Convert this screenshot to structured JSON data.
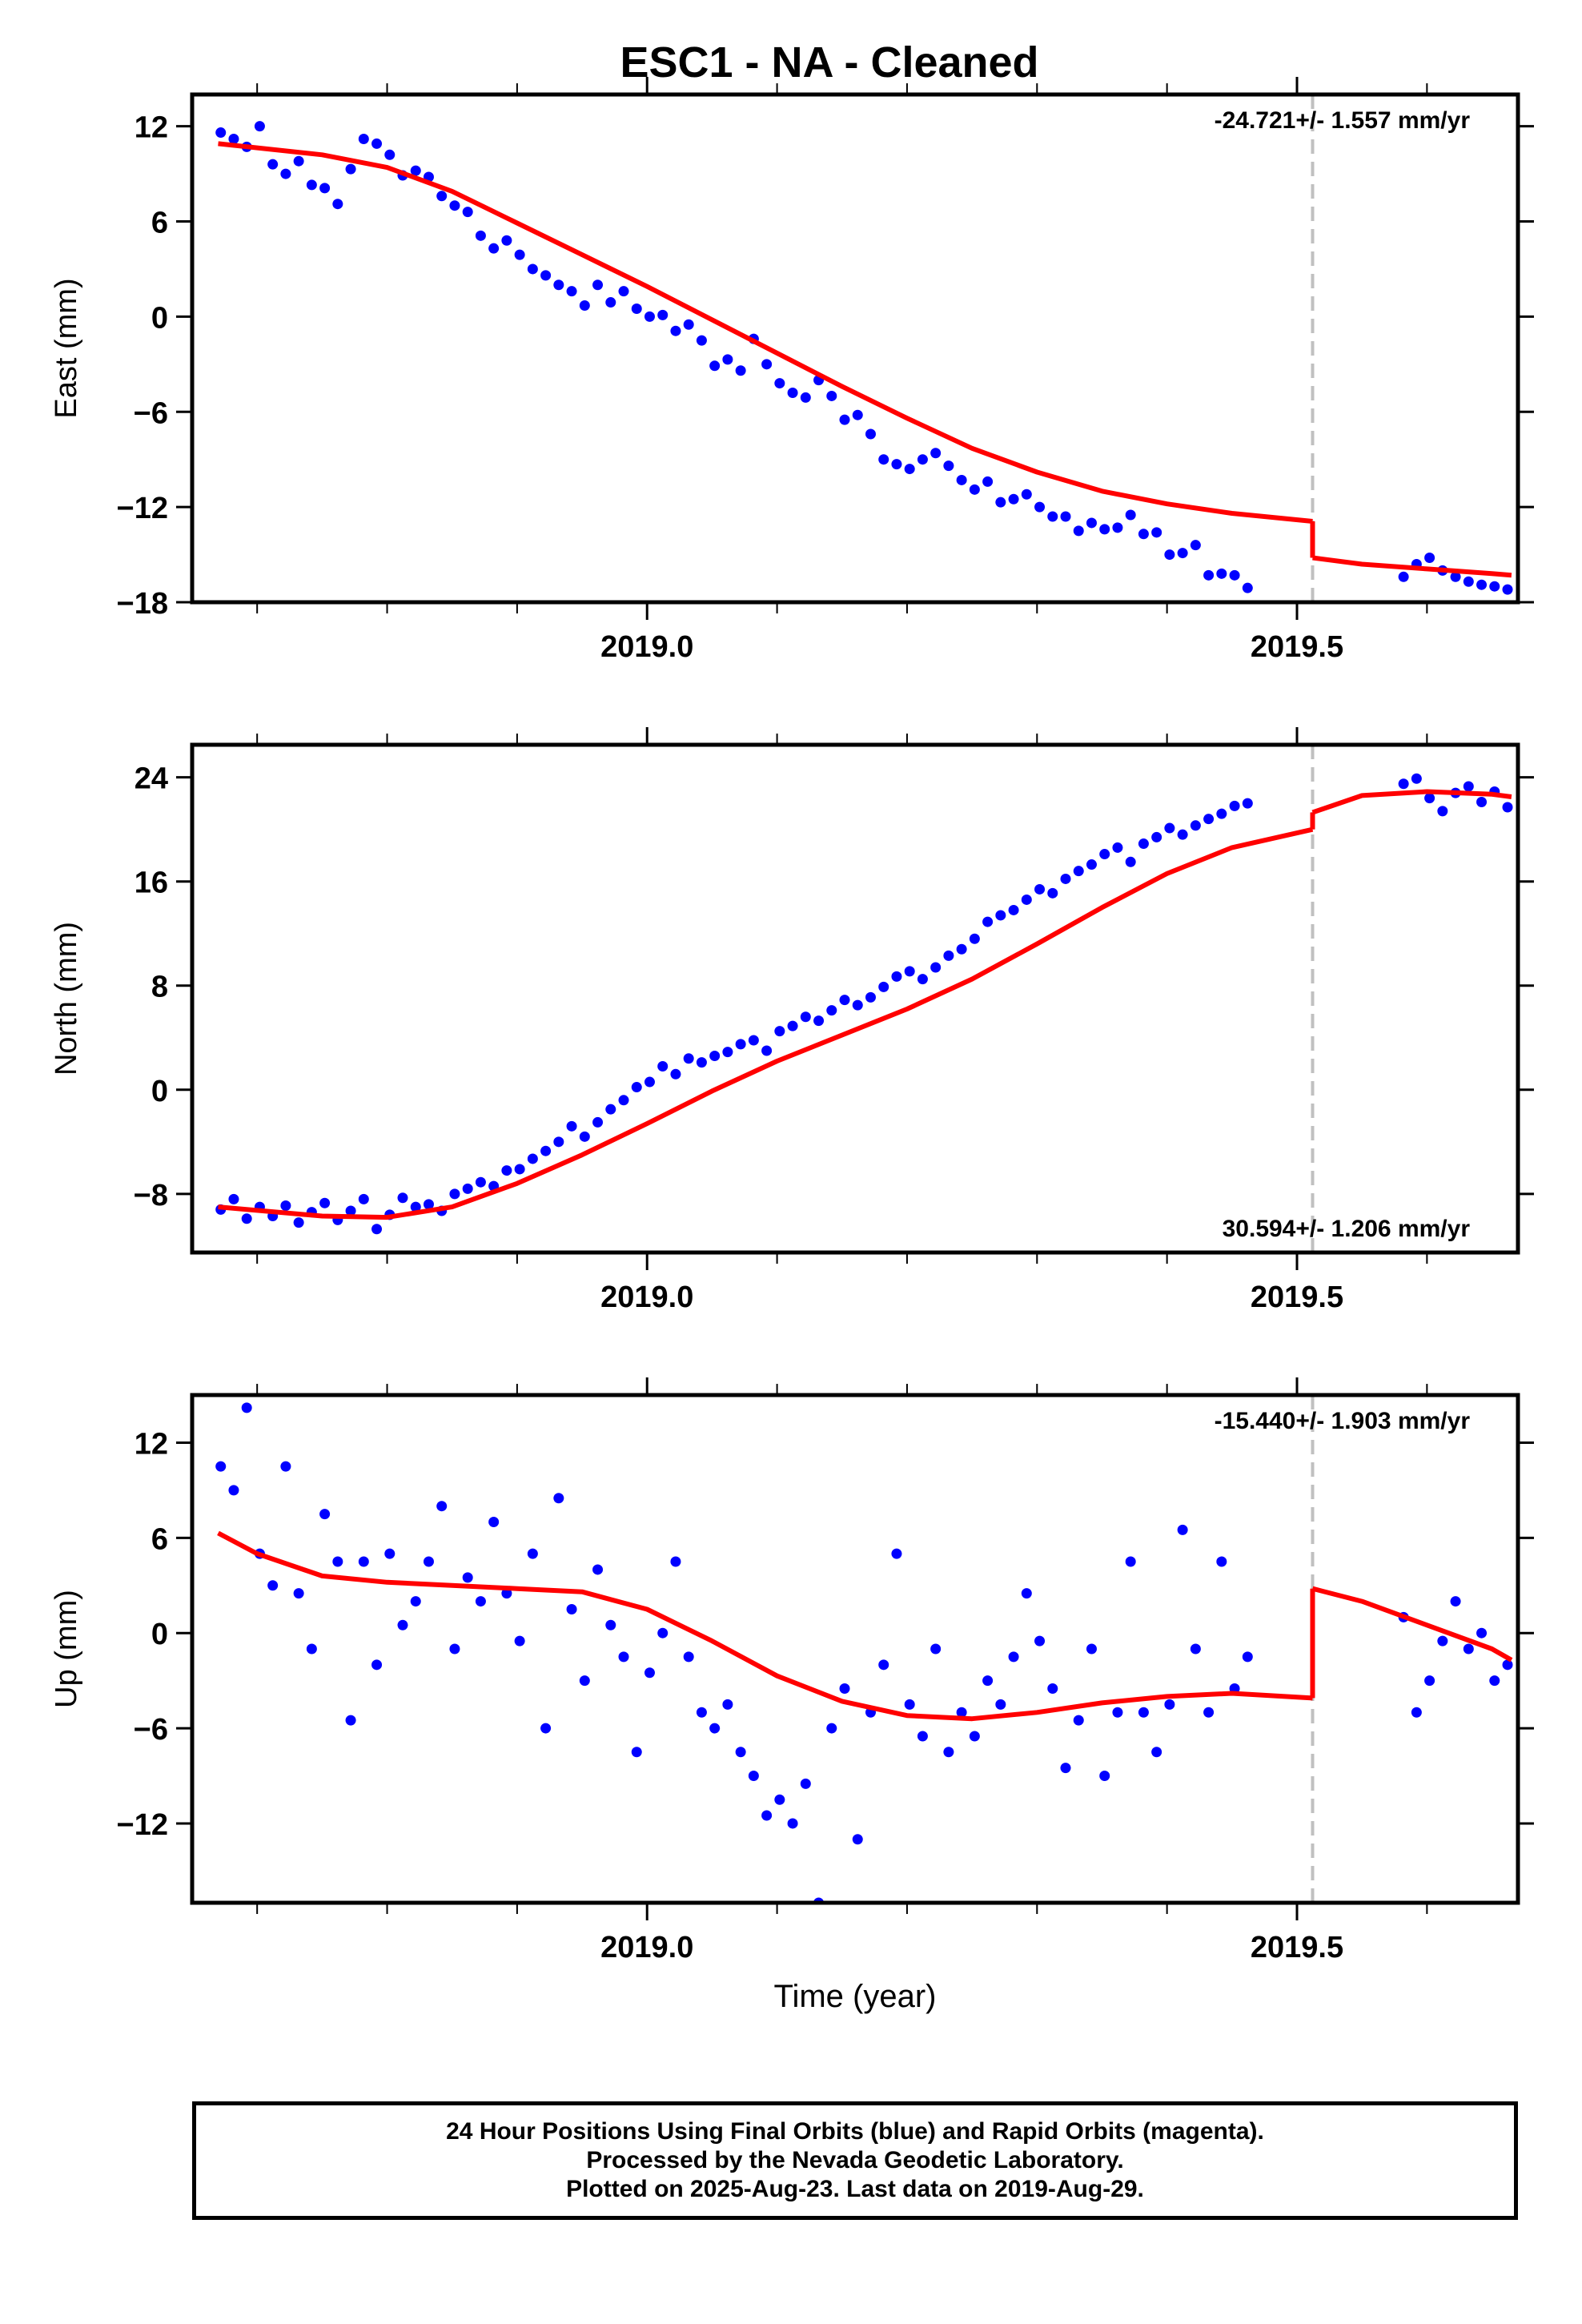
{
  "page": {
    "title": "ESC1  - NA - Cleaned"
  },
  "colors": {
    "final_orbits": "#0000ff",
    "model_line": "#ff0000",
    "break_line": "#c0c0c0",
    "frame": "#000000"
  },
  "chart_data": [
    {
      "type": "scatter",
      "ylabel": "East (mm)",
      "xlabel": "",
      "xlim": [
        2018.65,
        2019.67
      ],
      "ylim": [
        -18,
        14
      ],
      "yticks": [
        12,
        6,
        0,
        -6,
        -12,
        -18
      ],
      "ytick_labels": [
        "12",
        "6",
        "0",
        "−6",
        "−12",
        "−18"
      ],
      "xticks": [
        2019.0,
        2019.5
      ],
      "xtick_labels": [
        "2019.0",
        "2019.5"
      ],
      "break_epoch": 2019.512,
      "rate_label": "-24.721+/- 1.557 mm/yr",
      "rate_position": "top-right",
      "series": [
        {
          "kind": "points",
          "x": [
            2018.672,
            2018.682,
            2018.692,
            2018.702,
            2018.712,
            2018.722,
            2018.732,
            2018.742,
            2018.752,
            2018.762,
            2018.772,
            2018.782,
            2018.792,
            2018.802,
            2018.812,
            2018.822,
            2018.832,
            2018.842,
            2018.852,
            2018.862,
            2018.872,
            2018.882,
            2018.892,
            2018.902,
            2018.912,
            2018.922,
            2018.932,
            2018.942,
            2018.952,
            2018.962,
            2018.972,
            2018.982,
            2018.992,
            2019.002,
            2019.012,
            2019.022,
            2019.032,
            2019.042,
            2019.052,
            2019.062,
            2019.072,
            2019.082,
            2019.092,
            2019.102,
            2019.112,
            2019.122,
            2019.132,
            2019.142,
            2019.152,
            2019.162,
            2019.172,
            2019.182,
            2019.192,
            2019.202,
            2019.212,
            2019.222,
            2019.232,
            2019.242,
            2019.252,
            2019.262,
            2019.272,
            2019.282,
            2019.292,
            2019.302,
            2019.312,
            2019.322,
            2019.332,
            2019.342,
            2019.352,
            2019.362,
            2019.372,
            2019.382,
            2019.392,
            2019.402,
            2019.412,
            2019.422,
            2019.432,
            2019.442,
            2019.452,
            2019.462,
            2019.582,
            2019.592,
            2019.602,
            2019.612,
            2019.622,
            2019.632,
            2019.642,
            2019.652,
            2019.662
          ],
          "y": [
            11.6,
            11.2,
            10.7,
            12.0,
            9.6,
            9.0,
            9.8,
            8.3,
            8.1,
            7.1,
            9.3,
            11.2,
            10.9,
            10.2,
            8.9,
            9.2,
            8.8,
            7.6,
            7.0,
            6.6,
            5.1,
            4.3,
            4.8,
            3.9,
            3.0,
            2.6,
            2.0,
            1.6,
            0.7,
            2.0,
            0.9,
            1.6,
            0.5,
            0.0,
            0.1,
            -0.9,
            -0.5,
            -1.5,
            -3.1,
            -2.7,
            -3.4,
            -1.4,
            -3.0,
            -4.2,
            -4.8,
            -5.1,
            -4.0,
            -5.0,
            -6.5,
            -6.2,
            -7.4,
            -9.0,
            -9.3,
            -9.6,
            -9.0,
            -8.6,
            -9.4,
            -10.3,
            -10.9,
            -10.4,
            -11.7,
            -11.5,
            -11.2,
            -12.0,
            -12.6,
            -12.6,
            -13.5,
            -13.0,
            -13.4,
            -13.3,
            -12.5,
            -13.7,
            -13.6,
            -15.0,
            -14.9,
            -14.4,
            -16.3,
            -16.2,
            -16.3,
            -17.1,
            -16.4,
            -15.6,
            -15.2,
            -16.0,
            -16.4,
            -16.7,
            -16.9,
            -17.0,
            -17.2
          ]
        },
        {
          "kind": "model_pre",
          "x": [
            2018.67,
            2018.75,
            2018.8,
            2018.85,
            2018.9,
            2018.95,
            2019.0,
            2019.05,
            2019.1,
            2019.15,
            2019.2,
            2019.25,
            2019.3,
            2019.35,
            2019.4,
            2019.45,
            2019.512
          ],
          "y": [
            10.9,
            10.2,
            9.4,
            7.9,
            5.9,
            3.9,
            1.9,
            -0.2,
            -2.3,
            -4.4,
            -6.4,
            -8.3,
            -9.8,
            -11.0,
            -11.8,
            -12.4,
            -12.9
          ]
        },
        {
          "kind": "model_post",
          "x": [
            2019.512,
            2019.55,
            2019.6,
            2019.65,
            2019.665
          ],
          "y": [
            -15.2,
            -15.6,
            -15.9,
            -16.2,
            -16.3
          ]
        }
      ]
    },
    {
      "type": "scatter",
      "ylabel": "North (mm)",
      "xlabel": "",
      "xlim": [
        2018.65,
        2019.67
      ],
      "ylim": [
        -12.5,
        26.5
      ],
      "yticks": [
        24,
        16,
        8,
        0,
        -8
      ],
      "ytick_labels": [
        "24",
        "16",
        "8",
        "0",
        "−8"
      ],
      "xticks": [
        2019.0,
        2019.5
      ],
      "xtick_labels": [
        "2019.0",
        "2019.5"
      ],
      "break_epoch": 2019.512,
      "rate_label": "30.594+/- 1.206 mm/yr",
      "rate_position": "bottom-right",
      "series": [
        {
          "kind": "points",
          "x": [
            2018.672,
            2018.682,
            2018.692,
            2018.702,
            2018.712,
            2018.722,
            2018.732,
            2018.742,
            2018.752,
            2018.762,
            2018.772,
            2018.782,
            2018.792,
            2018.802,
            2018.812,
            2018.822,
            2018.832,
            2018.842,
            2018.852,
            2018.862,
            2018.872,
            2018.882,
            2018.892,
            2018.902,
            2018.912,
            2018.922,
            2018.932,
            2018.942,
            2018.952,
            2018.962,
            2018.972,
            2018.982,
            2018.992,
            2019.002,
            2019.012,
            2019.022,
            2019.032,
            2019.042,
            2019.052,
            2019.062,
            2019.072,
            2019.082,
            2019.092,
            2019.102,
            2019.112,
            2019.122,
            2019.132,
            2019.142,
            2019.152,
            2019.162,
            2019.172,
            2019.182,
            2019.192,
            2019.202,
            2019.212,
            2019.222,
            2019.232,
            2019.242,
            2019.252,
            2019.262,
            2019.272,
            2019.282,
            2019.292,
            2019.302,
            2019.312,
            2019.322,
            2019.332,
            2019.342,
            2019.352,
            2019.362,
            2019.372,
            2019.382,
            2019.392,
            2019.402,
            2019.412,
            2019.422,
            2019.432,
            2019.442,
            2019.452,
            2019.462,
            2019.582,
            2019.592,
            2019.602,
            2019.612,
            2019.622,
            2019.632,
            2019.642,
            2019.652,
            2019.662
          ],
          "y": [
            -9.2,
            -8.4,
            -9.9,
            -9.0,
            -9.7,
            -8.9,
            -10.2,
            -9.4,
            -8.7,
            -10.0,
            -9.3,
            -8.4,
            -10.7,
            -9.6,
            -8.3,
            -9.0,
            -8.8,
            -9.3,
            -8.0,
            -7.6,
            -7.1,
            -7.4,
            -6.2,
            -6.1,
            -5.3,
            -4.7,
            -4.0,
            -2.8,
            -3.6,
            -2.5,
            -1.5,
            -0.8,
            0.2,
            0.6,
            1.8,
            1.2,
            2.4,
            2.1,
            2.6,
            2.9,
            3.5,
            3.8,
            3.0,
            4.5,
            4.9,
            5.6,
            5.3,
            6.1,
            6.9,
            6.5,
            7.1,
            7.9,
            8.7,
            9.1,
            8.5,
            9.4,
            10.3,
            10.8,
            11.6,
            12.9,
            13.4,
            13.8,
            14.6,
            15.4,
            15.1,
            16.2,
            16.8,
            17.3,
            18.1,
            18.6,
            17.5,
            18.9,
            19.4,
            20.1,
            19.6,
            20.3,
            20.8,
            21.2,
            21.8,
            22.0,
            23.5,
            23.9,
            22.4,
            21.4,
            22.8,
            23.3,
            22.1,
            22.9,
            21.7
          ]
        },
        {
          "kind": "model_pre",
          "x": [
            2018.67,
            2018.75,
            2018.8,
            2018.85,
            2018.9,
            2018.95,
            2019.0,
            2019.05,
            2019.1,
            2019.15,
            2019.2,
            2019.25,
            2019.3,
            2019.35,
            2019.4,
            2019.45,
            2019.512
          ],
          "y": [
            -9.0,
            -9.7,
            -9.8,
            -9.0,
            -7.2,
            -5.0,
            -2.6,
            -0.1,
            2.2,
            4.2,
            6.2,
            8.5,
            11.2,
            14.0,
            16.6,
            18.6,
            20.0
          ]
        },
        {
          "kind": "model_post",
          "x": [
            2019.512,
            2019.55,
            2019.6,
            2019.65,
            2019.665
          ],
          "y": [
            21.3,
            22.6,
            22.9,
            22.7,
            22.5
          ]
        }
      ]
    },
    {
      "type": "scatter",
      "ylabel": "Up (mm)",
      "xlabel": "Time (year)",
      "xlim": [
        2018.65,
        2019.67
      ],
      "ylim": [
        -17,
        15
      ],
      "yticks": [
        12,
        6,
        0,
        -6,
        -12
      ],
      "ytick_labels": [
        "12",
        "6",
        "0",
        "−6",
        "−12"
      ],
      "xticks": [
        2019.0,
        2019.5
      ],
      "xtick_labels": [
        "2019.0",
        "2019.5"
      ],
      "break_epoch": 2019.512,
      "rate_label": "-15.440+/- 1.903 mm/yr",
      "rate_position": "top-right",
      "series": [
        {
          "kind": "points",
          "x": [
            2018.672,
            2018.682,
            2018.692,
            2018.702,
            2018.712,
            2018.722,
            2018.732,
            2018.742,
            2018.752,
            2018.762,
            2018.772,
            2018.782,
            2018.792,
            2018.802,
            2018.812,
            2018.822,
            2018.832,
            2018.842,
            2018.852,
            2018.862,
            2018.872,
            2018.882,
            2018.892,
            2018.902,
            2018.912,
            2018.922,
            2018.932,
            2018.942,
            2018.952,
            2018.962,
            2018.972,
            2018.982,
            2018.992,
            2019.002,
            2019.012,
            2019.022,
            2019.032,
            2019.042,
            2019.052,
            2019.062,
            2019.072,
            2019.082,
            2019.092,
            2019.102,
            2019.112,
            2019.122,
            2019.132,
            2019.142,
            2019.152,
            2019.162,
            2019.172,
            2019.182,
            2019.192,
            2019.202,
            2019.212,
            2019.222,
            2019.232,
            2019.242,
            2019.252,
            2019.262,
            2019.272,
            2019.282,
            2019.292,
            2019.302,
            2019.312,
            2019.322,
            2019.332,
            2019.342,
            2019.352,
            2019.362,
            2019.372,
            2019.382,
            2019.392,
            2019.402,
            2019.412,
            2019.422,
            2019.432,
            2019.442,
            2019.452,
            2019.462,
            2019.582,
            2019.592,
            2019.602,
            2019.612,
            2019.622,
            2019.632,
            2019.642,
            2019.652,
            2019.662
          ],
          "y": [
            10.5,
            9.0,
            14.2,
            5.0,
            3.0,
            10.5,
            2.5,
            -1.0,
            7.5,
            4.5,
            -5.5,
            4.5,
            -2.0,
            5.0,
            0.5,
            2.0,
            4.5,
            8.0,
            -1.0,
            3.5,
            2.0,
            7.0,
            2.5,
            -0.5,
            5.0,
            -6.0,
            8.5,
            1.5,
            -3.0,
            4.0,
            0.5,
            -1.5,
            -7.5,
            -2.5,
            0.0,
            4.5,
            -1.5,
            -5.0,
            -6.0,
            -4.5,
            -7.5,
            -9.0,
            -11.5,
            -10.5,
            -12.0,
            -9.5,
            -17.0,
            -6.0,
            -3.5,
            -13.0,
            -5.0,
            -2.0,
            5.0,
            -4.5,
            -6.5,
            -1.0,
            -7.5,
            -5.0,
            -6.5,
            -3.0,
            -4.5,
            -1.5,
            2.5,
            -0.5,
            -3.5,
            -8.5,
            -5.5,
            -1.0,
            -9.0,
            -5.0,
            4.5,
            -5.0,
            -7.5,
            -4.5,
            6.5,
            -1.0,
            -5.0,
            4.5,
            -3.5,
            -1.5,
            1.0,
            -5.0,
            -3.0,
            -0.5,
            2.0,
            -1.0,
            0.0,
            -3.0,
            -2.0
          ]
        },
        {
          "kind": "model_pre",
          "x": [
            2018.67,
            2018.7,
            2018.75,
            2018.8,
            2018.85,
            2018.9,
            2018.95,
            2019.0,
            2019.05,
            2019.1,
            2019.15,
            2019.2,
            2019.25,
            2019.3,
            2019.35,
            2019.4,
            2019.45,
            2019.512
          ],
          "y": [
            6.3,
            5.0,
            3.6,
            3.2,
            3.0,
            2.8,
            2.6,
            1.5,
            -0.5,
            -2.7,
            -4.3,
            -5.2,
            -5.4,
            -5.0,
            -4.4,
            -4.0,
            -3.8,
            -4.1
          ]
        },
        {
          "kind": "model_post",
          "x": [
            2019.512,
            2019.55,
            2019.6,
            2019.65,
            2019.665
          ],
          "y": [
            2.8,
            2.0,
            0.5,
            -1.0,
            -1.7
          ]
        }
      ]
    }
  ],
  "footer": {
    "line1": "24 Hour Positions Using Final Orbits (blue) and Rapid Orbits (magenta).",
    "line2": "Processed by the Nevada Geodetic Laboratory.",
    "line3": "Plotted on 2025-Aug-23. Last data on 2019-Aug-29."
  }
}
